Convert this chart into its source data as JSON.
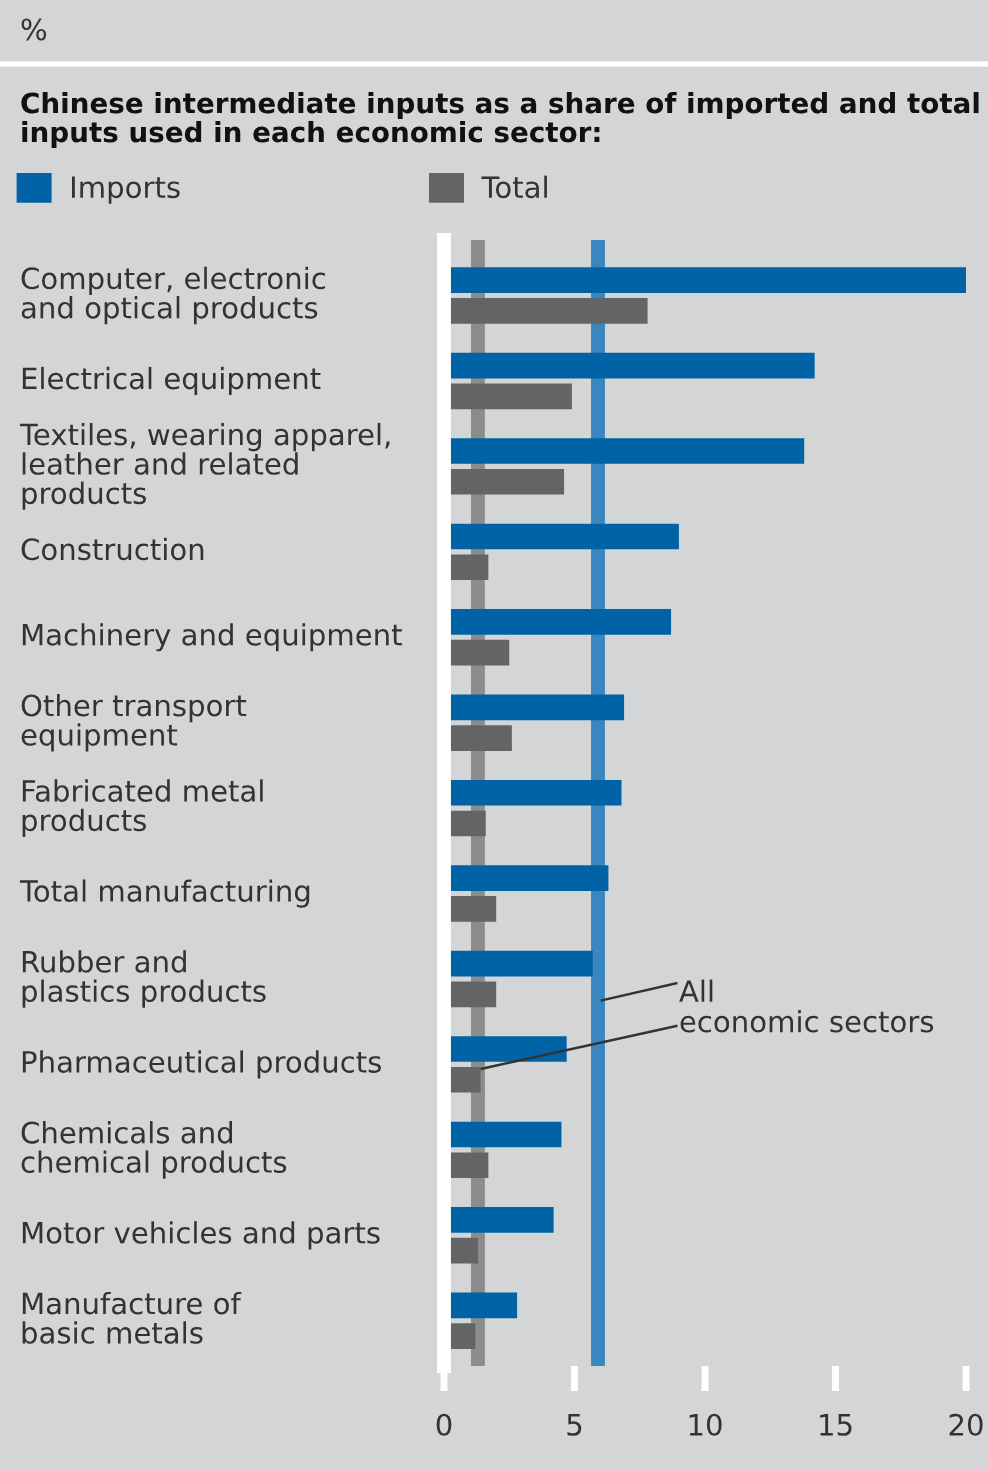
{
  "chart_data": {
    "type": "bar",
    "orientation": "horizontal",
    "title": "Chinese intermediate inputs as a share of imported and total inputs used in each economic sector:",
    "categories": [
      "Computer, electronic\nand optical products",
      "Electrical equipment",
      "Textiles, wearing apparel,\nleather and related\nproducts",
      "Construction",
      "Machinery and equipment",
      "Other transport\nequipment",
      "Fabricated metal\nproducts",
      "Total manufacturing",
      "Rubber and\nplastics products",
      "Pharmaceutical products",
      "Chemicals and\nchemical products",
      "Motor vehicles and parts",
      "Manufacture of\nbasic metals"
    ],
    "series": [
      {
        "name": "Imports",
        "color": "#0063a6",
        "values": [
          20.0,
          14.2,
          13.8,
          9.0,
          8.7,
          6.9,
          6.8,
          6.3,
          5.7,
          4.7,
          4.5,
          4.2,
          2.8
        ]
      },
      {
        "name": "Total",
        "color": "#636466",
        "values": [
          7.8,
          4.9,
          4.6,
          1.7,
          2.5,
          2.6,
          1.6,
          2.0,
          2.0,
          1.4,
          1.7,
          1.3,
          1.2
        ]
      }
    ],
    "ref_lines": [
      {
        "axis": "x",
        "value": 5.9,
        "color": "#3a87c0"
      },
      {
        "axis": "x",
        "value": 1.3,
        "color": "#8c8c8c"
      }
    ],
    "annotations": [
      "%",
      {
        "text": "All\neconomic sectors",
        "x": 5.9
      }
    ],
    "xlim": [
      0,
      20
    ],
    "xticks": [
      0,
      5,
      10,
      15,
      20
    ],
    "legend": "top left"
  }
}
